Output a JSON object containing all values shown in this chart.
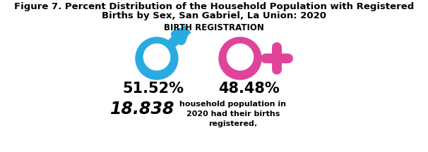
{
  "title_line1": "Figure 7. Percent Distribution of the Household Population with Registered",
  "title_line2": "Births by Sex, San Gabriel, La Union: 2020",
  "subtitle": "BIRTH REGISTRATION",
  "male_pct": "51.52%",
  "female_pct": "48.48%",
  "count_display": "18.838",
  "count_desc": "household population in\n2020 had their births\nregistered.",
  "male_color": "#29ABE2",
  "female_color": "#E0449A",
  "title_fontsize": 9.5,
  "subtitle_fontsize": 8.5,
  "pct_fontsize": 15,
  "count_fontsize": 17,
  "desc_fontsize": 8.0,
  "bg_color": "#ffffff"
}
